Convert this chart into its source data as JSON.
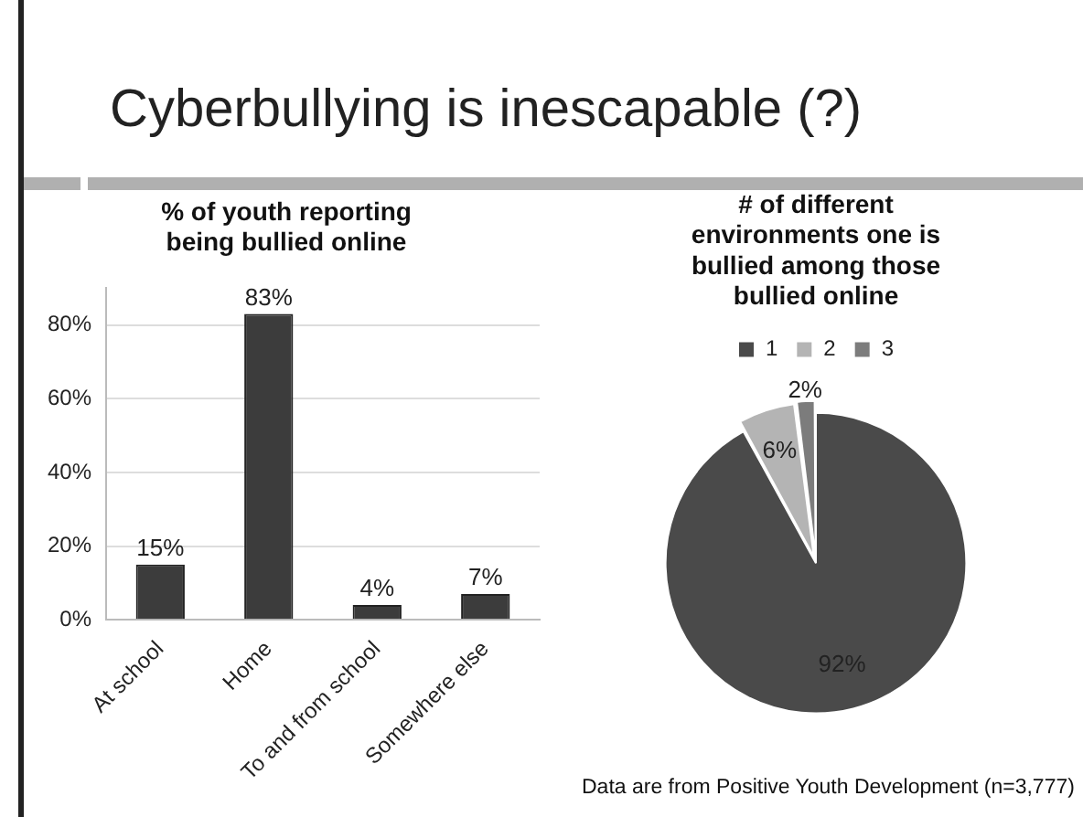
{
  "chart_data": [
    {
      "type": "bar",
      "title": "Cyberbullying is inescapable (?)",
      "subtitle": "% of youth reporting being bullied online",
      "categories": [
        "At school",
        "Home",
        "To and from school",
        "Somewhere else"
      ],
      "values": [
        15,
        83,
        4,
        7
      ],
      "value_labels": [
        "15%",
        "83%",
        "4%",
        "7%"
      ],
      "color": "#3c3c3c",
      "ylim": [
        0,
        90
      ],
      "yticks": [
        {
          "value": 0,
          "label": "0%"
        },
        {
          "value": 20,
          "label": "20%"
        },
        {
          "value": 40,
          "label": "40%"
        },
        {
          "value": 60,
          "label": "60%"
        },
        {
          "value": 80,
          "label": "80%"
        }
      ],
      "grid": "y"
    },
    {
      "type": "pie",
      "title": "# of different environments one is bullied among those bullied online",
      "categories": [
        "1",
        "2",
        "3"
      ],
      "values": [
        92,
        6,
        2
      ],
      "value_labels": [
        "92%",
        "6%",
        "2%"
      ],
      "colors": [
        "#4a4a4a",
        "#b4b4b4",
        "#7c7c7c"
      ],
      "legend": "top",
      "annotations": [
        "Data are from Positive Youth Development (n=3,777)"
      ]
    }
  ]
}
